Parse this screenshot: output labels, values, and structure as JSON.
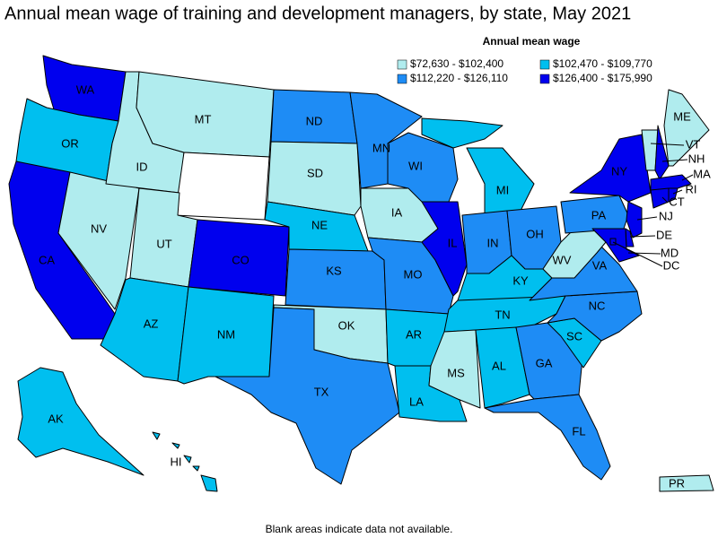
{
  "title": "Annual mean wage of training and development managers, by state, May 2021",
  "legend": {
    "title": "Annual mean wage",
    "items": [
      {
        "label": "$72,630 - $102,400",
        "color": "#b0ecee"
      },
      {
        "label": "$102,470 - $109,770",
        "color": "#00bfef"
      },
      {
        "label": "$112,220 - $126,110",
        "color": "#1e8cf5"
      },
      {
        "label": "$126,400 - $175,990",
        "color": "#0000ee"
      }
    ]
  },
  "states": [
    {
      "label": "WA",
      "bin": 3
    },
    {
      "label": "OR",
      "bin": 1
    },
    {
      "label": "CA",
      "bin": 3
    },
    {
      "label": "NV",
      "bin": 0
    },
    {
      "label": "ID",
      "bin": 0
    },
    {
      "label": "MT",
      "bin": 0
    },
    {
      "bin": null
    },
    {
      "label": "UT",
      "bin": 0
    },
    {
      "label": "AZ",
      "bin": 1
    },
    {
      "label": "CO",
      "bin": 3
    },
    {
      "label": "NM",
      "bin": 1
    },
    {
      "label": "ND",
      "bin": 2
    },
    {
      "label": "SD",
      "bin": 0
    },
    {
      "label": "NE",
      "bin": 1
    },
    {
      "label": "KS",
      "bin": 2
    },
    {
      "label": "OK",
      "bin": 0
    },
    {
      "label": "TX",
      "bin": 2
    },
    {
      "label": "MN",
      "bin": 2
    },
    {
      "label": "IA",
      "bin": 0
    },
    {
      "label": "MO",
      "bin": 2
    },
    {
      "label": "AR",
      "bin": 1
    },
    {
      "label": "LA",
      "bin": 1
    },
    {
      "label": "WI",
      "bin": 2
    },
    {
      "label": "IL",
      "bin": 3
    },
    {
      "label": "MI",
      "bin": 1
    },
    {
      "label": "IN",
      "bin": 2
    },
    {
      "label": "OH",
      "bin": 2
    },
    {
      "label": "KY",
      "bin": 1
    },
    {
      "label": "TN",
      "bin": 1
    },
    {
      "label": "MS",
      "bin": 0
    },
    {
      "label": "AL",
      "bin": 1
    },
    {
      "label": "GA",
      "bin": 2
    },
    {
      "label": "FL",
      "bin": 2
    },
    {
      "label": "SC",
      "bin": 1
    },
    {
      "label": "NC",
      "bin": 2
    },
    {
      "label": "VA",
      "bin": 2
    },
    {
      "label": "WV",
      "bin": 0
    },
    {
      "label": "PA",
      "bin": 2
    },
    {
      "label": "NY",
      "bin": 3
    },
    {
      "label": "VT",
      "bin": 0
    },
    {
      "label": "NH",
      "bin": 3
    },
    {
      "label": "ME",
      "bin": 0
    },
    {
      "label": "MA",
      "bin": 3
    },
    {
      "label": "CT",
      "bin": 3
    },
    {
      "label": "RI",
      "bin": 3
    },
    {
      "label": "NJ",
      "bin": 3
    },
    {
      "label": "DE",
      "bin": 3
    },
    {
      "label": "MD",
      "bin": 3
    },
    {
      "label": "DC",
      "bin": 3
    },
    {
      "label": "AK",
      "bin": 1
    },
    {
      "label": "HI",
      "bin": 1
    },
    {
      "label": "PR",
      "bin": 0
    }
  ],
  "footnote": "Blank areas indicate data not available."
}
